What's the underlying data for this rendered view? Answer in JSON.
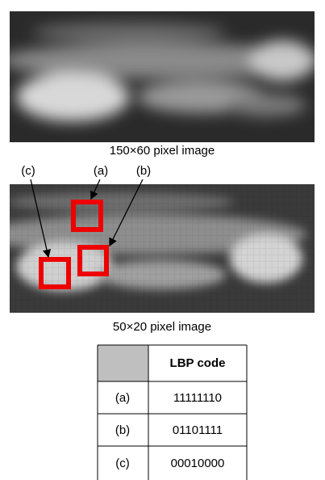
{
  "figure": {
    "top_caption": "150×60 pixel image",
    "bottom_caption": "50×20 pixel image",
    "markers": [
      "(c)",
      "(a)",
      "(b)"
    ]
  },
  "table": {
    "header": {
      "code": "LBP code"
    },
    "rows": [
      [
        "(a)",
        "11111110"
      ],
      [
        "(b)",
        "01101111"
      ],
      [
        "(c)",
        "00010000"
      ]
    ]
  }
}
